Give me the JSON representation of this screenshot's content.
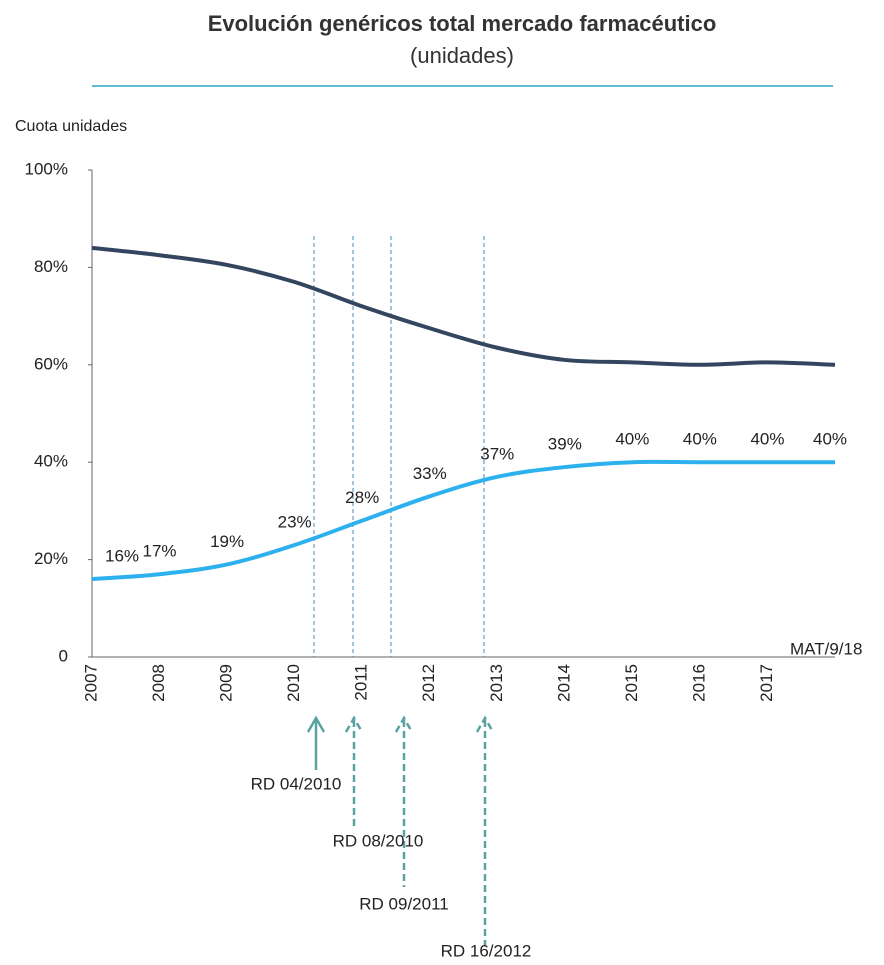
{
  "chart_data": {
    "type": "line",
    "title": "Evolución genéricos total mercado farmacéutico",
    "subtitle": "(unidades)",
    "y_label": "Cuota unidades",
    "categories": [
      "2007",
      "2008",
      "2009",
      "2010",
      "2011",
      "2012",
      "2013",
      "2014",
      "2015",
      "2016",
      "2017",
      "MAT/9/18"
    ],
    "series": [
      {
        "color": "#34465f",
        "values": [
          84,
          82.5,
          80.5,
          77,
          72,
          67.5,
          63.5,
          61,
          60.5,
          60,
          60.5,
          60
        ]
      },
      {
        "color": "#2db1ee",
        "values": [
          16,
          17,
          19,
          23,
          28,
          33,
          37,
          39,
          40,
          40,
          40,
          40
        ],
        "value_labels": [
          "16%",
          "17%",
          "19%",
          "23%",
          "28%",
          "33%",
          "37%",
          "39%",
          "40%",
          "40%",
          "40%",
          "40%"
        ]
      }
    ],
    "ylim": [
      0,
      100
    ],
    "yticks": [
      0,
      {
        "value": 20,
        "label": "20%"
      },
      {
        "value": 40,
        "label": "40%"
      },
      {
        "value": 60,
        "label": "60%"
      },
      {
        "value": 80,
        "label": "80%"
      },
      {
        "value": 100,
        "label": "100%"
      }
    ],
    "annotations": [
      "RD 04/2010",
      "RD 08/2010",
      "RD 09/2011",
      "RD 16/2012"
    ]
  }
}
